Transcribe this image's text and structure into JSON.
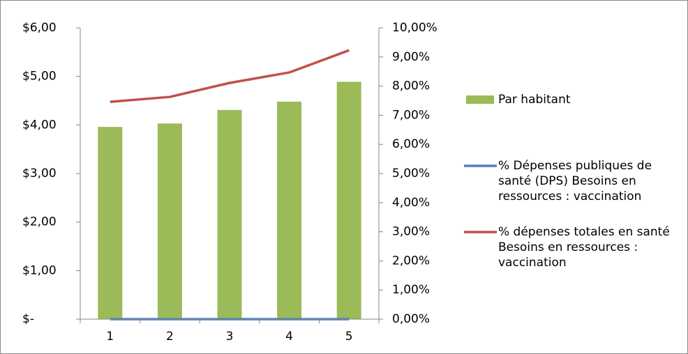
{
  "chart_data": {
    "type": "bar_line",
    "categories": [
      "1",
      "2",
      "3",
      "4",
      "5"
    ],
    "series": [
      {
        "name": "Par habitant",
        "type": "bar",
        "color": "#9bbb59",
        "values": [
          3.96,
          4.03,
          4.31,
          4.48,
          4.89
        ]
      },
      {
        "name": "% Dépenses publiques de santé (DPS) Besoins en ressources : vaccination",
        "type": "line",
        "axis": "y2",
        "color": "#4f81bd",
        "values": [
          0,
          0,
          0,
          0,
          0
        ]
      },
      {
        "name": "% dépenses totales en santé Besoins en ressources : vaccination",
        "type": "line",
        "axis": "y2",
        "color": "#c0504d",
        "values": [
          7.46,
          7.63,
          8.11,
          8.47,
          9.23
        ]
      }
    ],
    "ylim": [
      0,
      6
    ],
    "yticks": [
      {
        "value": 0,
        "label": "$-"
      },
      {
        "value": 1,
        "label": "$1,00"
      },
      {
        "value": 2,
        "label": "$2,00"
      },
      {
        "value": 3,
        "label": "$3,00"
      },
      {
        "value": 4,
        "label": "$4,00"
      },
      {
        "value": 5,
        "label": "$5,00"
      },
      {
        "value": 6,
        "label": "$6,00"
      }
    ],
    "y2lim": [
      0,
      10
    ],
    "y2ticks": [
      {
        "value": 0,
        "label": "0,00%"
      },
      {
        "value": 1,
        "label": "1,00%"
      },
      {
        "value": 2,
        "label": "2,00%"
      },
      {
        "value": 3,
        "label": "3,00%"
      },
      {
        "value": 4,
        "label": "4,00%"
      },
      {
        "value": 5,
        "label": "5,00%"
      },
      {
        "value": 6,
        "label": "6,00%"
      },
      {
        "value": 7,
        "label": "7,00%"
      },
      {
        "value": 8,
        "label": "8,00%"
      },
      {
        "value": 9,
        "label": "9,00%"
      },
      {
        "value": 10,
        "label": "10,00%"
      }
    ],
    "legend": "right"
  }
}
